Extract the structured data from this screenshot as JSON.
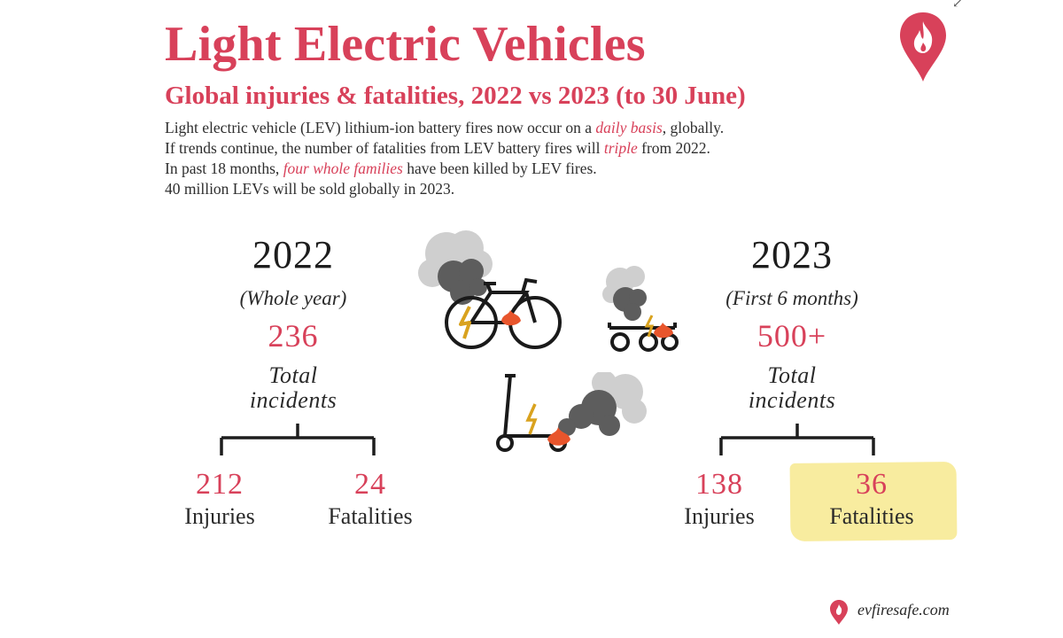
{
  "header": {
    "title": "Light Electric Vehicles",
    "subtitle": "Global injuries & fatalities, 2022 vs 2023 (to 30 June)"
  },
  "intro": {
    "line1_a": "Light electric vehicle (LEV) lithium-ion battery fires now occur on a ",
    "line1_em": "daily basis",
    "line1_b": ", globally.",
    "line2_a": "If trends continue, the number of fatalities from LEV battery fires will ",
    "line2_em": "triple",
    "line2_b": " from 2022.",
    "line3_a": "In past 18 months, ",
    "line3_em": "four whole families",
    "line3_b": " have been killed by LEV fires.",
    "line4": "40 million LEVs will be sold globally in 2023."
  },
  "left": {
    "year": "2022",
    "period": "(Whole year)",
    "total": "236",
    "total_label_1": "Total",
    "total_label_2": "incidents",
    "injuries_value": "212",
    "injuries_label": "Injuries",
    "fatalities_value": "24",
    "fatalities_label": "Fatalities"
  },
  "right": {
    "year": "2023",
    "period": "(First 6 months)",
    "total": "500+",
    "total_label_1": "Total",
    "total_label_2": "incidents",
    "injuries_value": "138",
    "injuries_label": "Injuries",
    "fatalities_value": "36",
    "fatalities_label": "Fatalities"
  },
  "footer": {
    "site": "evfiresafe.com"
  },
  "colors": {
    "accent": "#d8415a",
    "highlight": "#f8ec9f",
    "smoke_dark": "#5f5f5f",
    "smoke_light": "#c9c9c9",
    "flame": "#e8552c",
    "bolt": "#d9a21e"
  },
  "icons": [
    "flame-pin-logo-icon",
    "burning-ebike-icon",
    "burning-cart-icon",
    "burning-scooter-icon",
    "location-pin-icon"
  ]
}
